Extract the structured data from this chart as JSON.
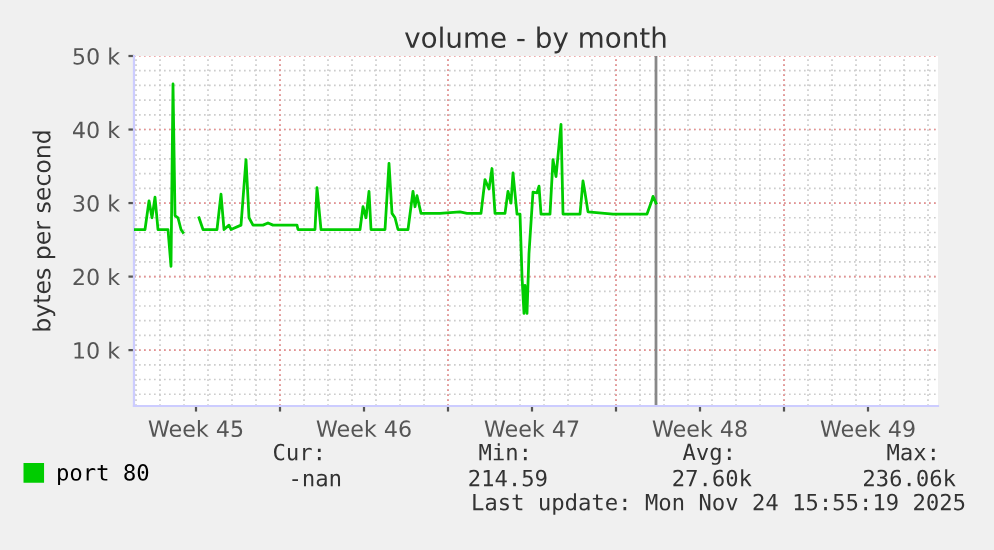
{
  "chart_data": {
    "type": "line",
    "title": "volume - by month",
    "ylabel": "bytes per second",
    "x": [
      "2025-11-02T23:00",
      "2025-11-03T09:00",
      "2025-11-03T13:00",
      "2025-11-03T16:00",
      "2025-11-03T19:00",
      "2025-11-03T22:00",
      "2025-11-04T08:00",
      "2025-11-04T11:00",
      "2025-11-04T13:00",
      "2025-11-04T15:00",
      "2025-11-04T18:00",
      "2025-11-04T21:00",
      "2025-11-04T23:00",
      "2025-11-05T02:00",
      "2025-11-05T13:00",
      "2025-11-05T15:00",
      "2025-11-05T19:00",
      "2025-11-06T09:00",
      "2025-11-06T13:00",
      "2025-11-06T16:00",
      "2025-11-06T21:00",
      "2025-11-06T23:00",
      "2025-11-07T09:00",
      "2025-11-07T14:00",
      "2025-11-07T17:00",
      "2025-11-07T21:00",
      "2025-11-08T07:00",
      "2025-11-08T12:00",
      "2025-11-08T17:00",
      "2025-11-09T17:00",
      "2025-11-09T18:00",
      "2025-11-10T11:00",
      "2025-11-10T13:00",
      "2025-11-10T17:00",
      "2025-11-12T08:00",
      "2025-11-12T11:00",
      "2025-11-12T14:00",
      "2025-11-12T17:00",
      "2025-11-12T19:00",
      "2025-11-13T09:00",
      "2025-11-13T13:00",
      "2025-11-13T16:00",
      "2025-11-13T19:00",
      "2025-11-13T22:00",
      "2025-11-14T08:00",
      "2025-11-14T13:00",
      "2025-11-14T15:00",
      "2025-11-14T17:00",
      "2025-11-14T21:00",
      "2025-11-15T16:00",
      "2025-11-16T12:00",
      "2025-11-16T19:00",
      "2025-11-17T09:00",
      "2025-11-17T13:00",
      "2025-11-17T17:00",
      "2025-11-17T20:00",
      "2025-11-17T23:00",
      "2025-11-18T09:00",
      "2025-11-18T12:00",
      "2025-11-18T15:00",
      "2025-11-18T17:00",
      "2025-11-18T21:00",
      "2025-11-19T00:00",
      "2025-11-19T02:00",
      "2025-11-19T04:00",
      "2025-11-19T05:00",
      "2025-11-19T07:00",
      "2025-11-19T09:00",
      "2025-11-19T13:00",
      "2025-11-19T17:00",
      "2025-11-19T19:00",
      "2025-11-19T21:00",
      "2025-11-20T06:00",
      "2025-11-20T09:00",
      "2025-11-20T12:00",
      "2025-11-20T17:00",
      "2025-11-20T19:00",
      "2025-11-21T12:00",
      "2025-11-21T15:00",
      "2025-11-21T17:00",
      "2025-11-21T20:00",
      "2025-11-22T21:00",
      "2025-11-24T07:00",
      "2025-11-24T11:00",
      "2025-11-24T13:00",
      "2025-11-24T16:00"
    ],
    "series": [
      {
        "name": "port 80",
        "color": "#00cc00",
        "values": [
          26400,
          26400,
          30300,
          28000,
          30800,
          26400,
          26400,
          21400,
          46200,
          28300,
          28000,
          26400,
          26000,
          null,
          null,
          28000,
          26400,
          26400,
          31200,
          26400,
          27000,
          26400,
          27000,
          35900,
          28000,
          27000,
          27000,
          27300,
          27000,
          27000,
          26400,
          26400,
          32100,
          26400,
          26400,
          29500,
          28000,
          31600,
          26400,
          26400,
          35400,
          28600,
          28000,
          26400,
          26400,
          31600,
          29500,
          31000,
          28600,
          28600,
          28800,
          28600,
          28600,
          33200,
          31900,
          34700,
          28600,
          28600,
          31600,
          30000,
          34100,
          28500,
          28500,
          20000,
          15000,
          18800,
          15000,
          23200,
          31500,
          31400,
          32300,
          28500,
          28500,
          35900,
          33600,
          40700,
          28500,
          28500,
          33000,
          31400,
          28800,
          28500,
          28500,
          30000,
          30900,
          30000
        ]
      }
    ],
    "xlim": [
      "2025-11-02T22:00",
      "2025-12-06T10:00"
    ],
    "xticks": [
      {
        "value": "2025-11-05T12:00",
        "label": "Week 45"
      },
      {
        "value": "2025-11-09",
        "label": null
      },
      {
        "value": "2025-11-12T12:00",
        "label": "Week 46"
      },
      {
        "value": "2025-11-16",
        "label": null
      },
      {
        "value": "2025-11-19T12:00",
        "label": "Week 47"
      },
      {
        "value": "2025-11-23",
        "label": null
      },
      {
        "value": "2025-11-26T12:00",
        "label": "Week 48"
      },
      {
        "value": "2025-11-30",
        "label": null
      },
      {
        "value": "2025-12-03T12:00",
        "label": "Week 49"
      }
    ],
    "ylim": [
      2400,
      50000
    ],
    "yticks": [
      {
        "value": 10000,
        "label": "10 k"
      },
      {
        "value": 20000,
        "label": "20 k"
      },
      {
        "value": 30000,
        "label": "30 k"
      },
      {
        "value": 40000,
        "label": "40 k"
      },
      {
        "value": 50000,
        "label": "50 k"
      }
    ],
    "grid": true,
    "legend": "bottom",
    "ref_lines": [
      {
        "axis": "x",
        "value": "2025-11-24T16:00",
        "color": "#888888"
      }
    ],
    "annotations": [
      "Cur:",
      "Min:",
      "Avg:",
      "Max:",
      "-nan",
      "214.59",
      "27.60k",
      "236.06k",
      "Last update: Mon Nov 24 15:55:19 2025"
    ]
  }
}
